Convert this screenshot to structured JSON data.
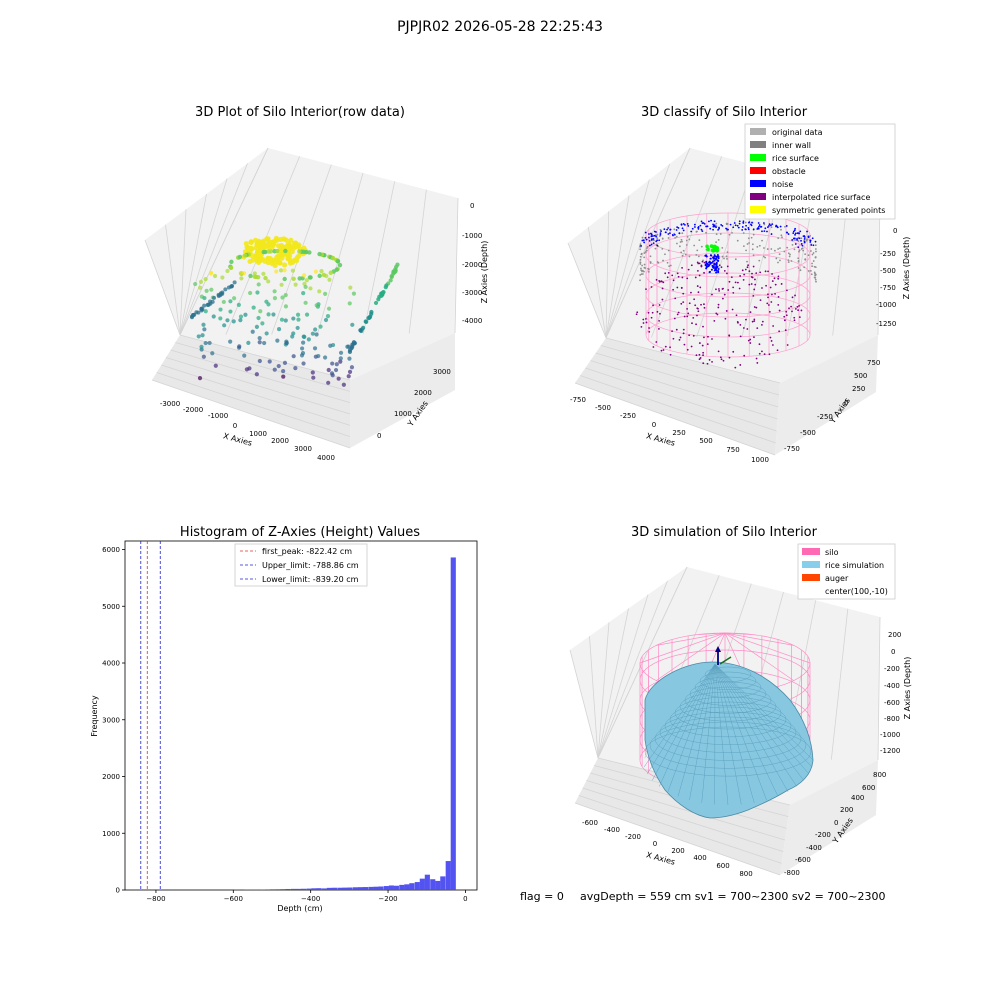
{
  "figure": {
    "suptitle": "PJPJR02 2026-05-28 22:25:43",
    "footer": {
      "flag": "flag = 0",
      "avg": "avgDepth = 559 cm  sv1 = 700~2300  sv2 = 700~2300"
    }
  },
  "chart_data": [
    {
      "type": "scatter",
      "projection": "3d",
      "title": "3D Plot of Silo Interior(row data)",
      "xlabel": "X Axies",
      "ylabel": "Y Axies",
      "zlabel": "Z Axies (Depth)",
      "x_ticks": [
        "-3000",
        "-2000",
        "-1000",
        "0",
        "1000",
        "2000",
        "3000",
        "4000"
      ],
      "y_ticks": [
        "0",
        "1000",
        "2000",
        "3000"
      ],
      "z_ticks": [
        "0",
        "-1000",
        "-2000",
        "-3000",
        "-4000"
      ],
      "colormap": "viridis",
      "grid": true
    },
    {
      "type": "scatter",
      "projection": "3d",
      "title": "3D classify of Silo Interior",
      "xlabel": "X Axies",
      "ylabel": "Y Axies",
      "zlabel": "Z Axies (Depth)",
      "x_ticks": [
        "-750",
        "-500",
        "-250",
        "0",
        "250",
        "500",
        "750",
        "1000"
      ],
      "y_ticks": [
        "-750",
        "-500",
        "-250",
        "0",
        "250",
        "500",
        "750"
      ],
      "z_ticks": [
        "0",
        "-250",
        "-500",
        "-750",
        "-1000",
        "-1250"
      ],
      "legend_position": "top-right",
      "legend": [
        {
          "label": "original data",
          "color": "#b0b0b0"
        },
        {
          "label": "inner wall",
          "color": "#808080"
        },
        {
          "label": "rice surface",
          "color": "#00ff00"
        },
        {
          "label": "obstacle",
          "color": "#ff0000"
        },
        {
          "label": "noise",
          "color": "#0000ff"
        },
        {
          "label": "interpolated rice surface",
          "color": "#800080"
        },
        {
          "label": "symmetric generated points",
          "color": "#ffff00"
        }
      ],
      "grid": true
    },
    {
      "type": "bar",
      "title": "Histogram of Z-Axies (Height) Values",
      "xlabel": "Depth (cm)",
      "ylabel": "Frequency",
      "xlim": [
        -880,
        30
      ],
      "ylim": [
        0,
        6150
      ],
      "x_ticks": [
        -800,
        -600,
        -400,
        -200,
        0
      ],
      "x_tick_labels": [
        "−800",
        "−600",
        "−400",
        "−200",
        "0"
      ],
      "y_ticks": [
        0,
        1000,
        2000,
        3000,
        4000,
        5000,
        6000
      ],
      "bar_color": "#4a4af0",
      "bin_width": 13.3,
      "bins": [
        {
          "x": -598,
          "v": 5
        },
        {
          "x": -585,
          "v": 3
        },
        {
          "x": -571,
          "v": 8
        },
        {
          "x": -558,
          "v": 6
        },
        {
          "x": -545,
          "v": 7
        },
        {
          "x": -531,
          "v": 9
        },
        {
          "x": -518,
          "v": 10
        },
        {
          "x": -505,
          "v": 12
        },
        {
          "x": -491,
          "v": 13
        },
        {
          "x": -478,
          "v": 15
        },
        {
          "x": -465,
          "v": 18
        },
        {
          "x": -451,
          "v": 20
        },
        {
          "x": -438,
          "v": 20
        },
        {
          "x": -425,
          "v": 22
        },
        {
          "x": -411,
          "v": 25
        },
        {
          "x": -398,
          "v": 30
        },
        {
          "x": -385,
          "v": 32
        },
        {
          "x": -371,
          "v": 28
        },
        {
          "x": -358,
          "v": 38
        },
        {
          "x": -345,
          "v": 40
        },
        {
          "x": -331,
          "v": 40
        },
        {
          "x": -318,
          "v": 42
        },
        {
          "x": -305,
          "v": 44
        },
        {
          "x": -291,
          "v": 48
        },
        {
          "x": -278,
          "v": 50
        },
        {
          "x": -265,
          "v": 52
        },
        {
          "x": -251,
          "v": 55
        },
        {
          "x": -238,
          "v": 58
        },
        {
          "x": -225,
          "v": 62
        },
        {
          "x": -211,
          "v": 70
        },
        {
          "x": -198,
          "v": 80
        },
        {
          "x": -185,
          "v": 75
        },
        {
          "x": -171,
          "v": 90
        },
        {
          "x": -158,
          "v": 100
        },
        {
          "x": -145,
          "v": 120
        },
        {
          "x": -131,
          "v": 140
        },
        {
          "x": -118,
          "v": 200
        },
        {
          "x": -105,
          "v": 270
        },
        {
          "x": -91,
          "v": 190
        },
        {
          "x": -78,
          "v": 160
        },
        {
          "x": -65,
          "v": 240
        },
        {
          "x": -51,
          "v": 510
        },
        {
          "x": -38,
          "v": 5860
        }
      ],
      "vlines": [
        {
          "label": "first_peak: -822.42 cm",
          "x": -822.42,
          "color": "#e03030"
        },
        {
          "label": "Upper_limit: -788.86 cm",
          "x": -788.86,
          "color": "#2020d0"
        },
        {
          "label": "Lower_limit: -839.20 cm",
          "x": -839.2,
          "color": "#2020d0"
        }
      ],
      "legend_position": "top-center"
    },
    {
      "type": "surface",
      "projection": "3d",
      "title": "3D simulation of Silo Interior",
      "xlabel": "X Axies",
      "ylabel": "Y Axies",
      "zlabel": "Z Axies (Depth)",
      "x_ticks": [
        "-600",
        "-400",
        "-200",
        "0",
        "200",
        "400",
        "600",
        "800"
      ],
      "y_ticks": [
        "800",
        "600",
        "400",
        "200",
        "0",
        "-200",
        "-400",
        "-600",
        "-800"
      ],
      "z_ticks": [
        "200",
        "0",
        "-200",
        "-400",
        "-600",
        "-800",
        "-1000",
        "-1200"
      ],
      "legend_position": "top-right",
      "legend": [
        {
          "label": "silo",
          "color": "#ff69b4"
        },
        {
          "label": "rice simulation",
          "color": "#87ceeb"
        },
        {
          "label": "auger",
          "color": "#ff4500"
        },
        {
          "label": "center(100,-10)",
          "color": ""
        }
      ],
      "grid": true
    }
  ]
}
